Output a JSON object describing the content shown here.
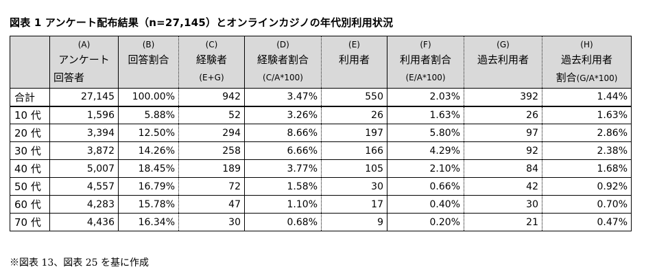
{
  "title": "図表 1 アンケート配布結果（n=27,145）とオンラインカジノの年代別利用状況",
  "columns": [
    {
      "id": "(A)",
      "line2": "アンケート",
      "line3": "回答者"
    },
    {
      "id": "(B)",
      "line2": "回答割合",
      "line3": ""
    },
    {
      "id": "(C)",
      "line2": "経験者",
      "line3": "(E+G)"
    },
    {
      "id": "(D)",
      "line2": "経験者割合",
      "line3": "(C/A*100)"
    },
    {
      "id": "(E)",
      "line2": "利用者",
      "line3": ""
    },
    {
      "id": "(F)",
      "line2": "利用者割合",
      "line3": "(E/A*100)"
    },
    {
      "id": "(G)",
      "line2": "過去利用者",
      "line3": ""
    },
    {
      "id": "(H)",
      "line2": "過去利用者",
      "line3a": "割合",
      "line3b": "(G/A*100)"
    }
  ],
  "rows": [
    {
      "label": "合計",
      "values": [
        "27,145",
        "100.00%",
        "942",
        "3.47%",
        "550",
        "2.03%",
        "392",
        "1.44%"
      ]
    },
    {
      "label": "10 代",
      "values": [
        "1,596",
        "5.88%",
        "52",
        "3.26%",
        "26",
        "1.63%",
        "26",
        "1.63%"
      ]
    },
    {
      "label": "20 代",
      "values": [
        "3,394",
        "12.50%",
        "294",
        "8.66%",
        "197",
        "5.80%",
        "97",
        "2.86%"
      ]
    },
    {
      "label": "30 代",
      "values": [
        "3,872",
        "14.26%",
        "258",
        "6.66%",
        "166",
        "4.29%",
        "92",
        "2.38%"
      ]
    },
    {
      "label": "40 代",
      "values": [
        "5,007",
        "18.45%",
        "189",
        "3.77%",
        "105",
        "2.10%",
        "84",
        "1.68%"
      ]
    },
    {
      "label": "50 代",
      "values": [
        "4,557",
        "16.79%",
        "72",
        "1.58%",
        "30",
        "0.66%",
        "42",
        "0.92%"
      ]
    },
    {
      "label": "60 代",
      "values": [
        "4,283",
        "15.78%",
        "47",
        "1.10%",
        "17",
        "0.40%",
        "30",
        "0.70%"
      ]
    },
    {
      "label": "70 代",
      "values": [
        "4,436",
        "16.34%",
        "30",
        "0.68%",
        "9",
        "0.20%",
        "21",
        "0.47%"
      ]
    }
  ],
  "note": "※図表 13、図表 25 を基に作成"
}
